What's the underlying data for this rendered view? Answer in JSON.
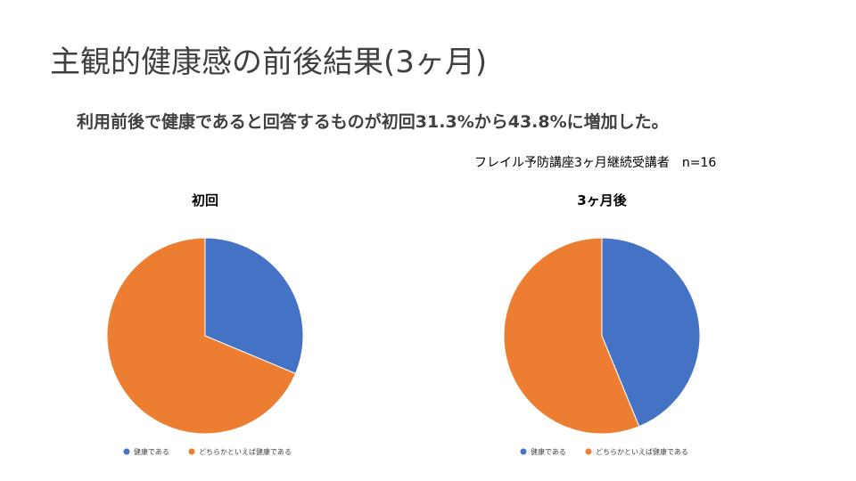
{
  "slide": {
    "title": "主観的健康感の前後結果(3ヶ月)",
    "subtitle": "利用前後で健康であると回答するものが初回31.3%から43.8%に増加した。",
    "note": "フレイル予防講座3ヶ月継続受講者　n=16"
  },
  "colors": {
    "healthy": "#4472C4",
    "somewhat_healthy": "#ED7D31"
  },
  "chart_data": [
    {
      "type": "pie",
      "title": "初回",
      "categories": [
        "健康である",
        "どちらかといえば健康である"
      ],
      "values": [
        31.3,
        68.7
      ],
      "legend": "bottom"
    },
    {
      "type": "pie",
      "title": "3ヶ月後",
      "categories": [
        "健康である",
        "どちらかといえば健康である"
      ],
      "values": [
        43.8,
        56.2
      ],
      "legend": "bottom"
    }
  ]
}
